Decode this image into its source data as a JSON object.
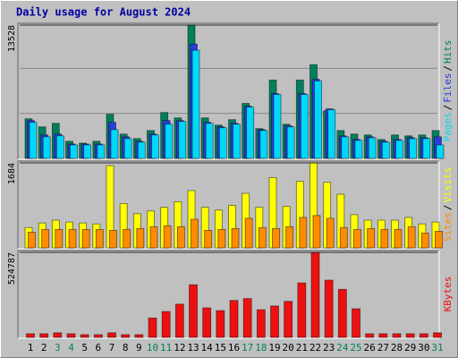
{
  "title": "Daily usage for August 2024",
  "legend_separator": "/",
  "chart_data": [
    {
      "type": "bar",
      "ylim": [
        0,
        13528
      ],
      "yticks": [
        13528
      ],
      "series": [
        {
          "name": "Hits",
          "color": "#00805c",
          "values": [
            4020,
            3200,
            3560,
            1740,
            1550,
            1740,
            4480,
            2470,
            2010,
            2830,
            4660,
            4110,
            13528,
            4110,
            3380,
            3930,
            5580,
            3020,
            7950,
            3470,
            7950,
            9510,
            4840,
            2830,
            2470,
            2380,
            1920,
            2380,
            2290,
            2380,
            2830
          ]
        },
        {
          "name": "Files",
          "color": "#2a3ce0",
          "values": [
            3840,
            2380,
            2470,
            1460,
            1460,
            1460,
            3660,
            2190,
            1740,
            2470,
            3840,
            3840,
            11600,
            3660,
            3200,
            3560,
            5300,
            2920,
            6580,
            3290,
            6580,
            8040,
            5030,
            2290,
            1920,
            2190,
            1740,
            1920,
            2100,
            2100,
            2190
          ]
        },
        {
          "name": "Pages",
          "color": "#00d8f8",
          "values": [
            3660,
            2190,
            2290,
            1370,
            1370,
            1370,
            2920,
            2010,
            1650,
            2380,
            3470,
            3750,
            10970,
            3560,
            3110,
            3470,
            5210,
            2830,
            6490,
            3200,
            6490,
            7860,
            4940,
            2190,
            1830,
            2100,
            1650,
            1830,
            2010,
            2010,
            1370
          ]
        }
      ]
    },
    {
      "type": "bar",
      "ylim": [
        0,
        1684
      ],
      "yticks": [
        1684
      ],
      "series": [
        {
          "name": "Visits",
          "color": "#ffff00",
          "values": [
            403,
            494,
            549,
            512,
            494,
            476,
            1629,
            878,
            677,
            732,
            805,
            915,
            1135,
            805,
            750,
            842,
            1080,
            805,
            1391,
            824,
            1318,
            1684,
            1299,
            1062,
            659,
            549,
            549,
            549,
            604,
            476,
            512
          ]
        },
        {
          "name": "Sites",
          "color": "#ff8c00",
          "values": [
            311,
            366,
            366,
            366,
            366,
            366,
            348,
            366,
            384,
            421,
            439,
            421,
            567,
            348,
            366,
            384,
            586,
            403,
            384,
            421,
            604,
            641,
            586,
            403,
            366,
            384,
            366,
            366,
            421,
            293,
            329
          ]
        }
      ]
    },
    {
      "type": "bar",
      "ylim": [
        0,
        524787
      ],
      "yticks": [
        524787
      ],
      "categories": [
        "1",
        "2",
        "3",
        "4",
        "5",
        "6",
        "7",
        "8",
        "9",
        "10",
        "11",
        "12",
        "13",
        "14",
        "15",
        "16",
        "17",
        "18",
        "19",
        "20",
        "21",
        "22",
        "23",
        "24",
        "25",
        "26",
        "27",
        "28",
        "29",
        "30",
        "31"
      ],
      "category_colors": [
        "#000000",
        "#000000",
        "#008060",
        "#008060",
        "#000000",
        "#000000",
        "#000000",
        "#000000",
        "#000000",
        "#008060",
        "#008060",
        "#000000",
        "#000000",
        "#000000",
        "#000000",
        "#000000",
        "#008060",
        "#008060",
        "#000000",
        "#000000",
        "#000000",
        "#000000",
        "#000000",
        "#008060",
        "#008060",
        "#000000",
        "#000000",
        "#000000",
        "#000000",
        "#000000",
        "#008060"
      ],
      "series": [
        {
          "name": "KBytes",
          "color": "#ee1010",
          "values": [
            22800,
            22800,
            28500,
            22800,
            17100,
            17100,
            28500,
            17100,
            17100,
            119800,
            159700,
            205300,
            325100,
            182500,
            165400,
            228200,
            239600,
            171100,
            193900,
            222500,
            336500,
            524787,
            353600,
            296600,
            176800,
            22800,
            22800,
            22800,
            22800,
            22800,
            28500
          ]
        }
      ]
    }
  ]
}
